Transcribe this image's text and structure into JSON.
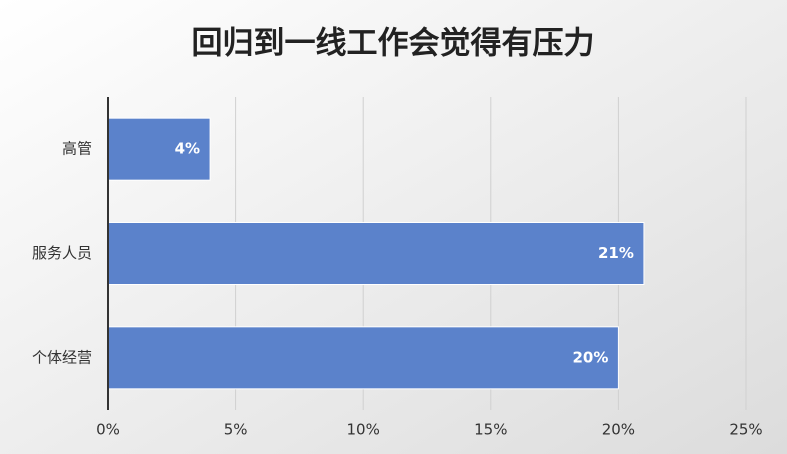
{
  "chart_data": {
    "type": "hbar",
    "title": "回归到一线工作会觉得有压力",
    "categories": [
      "高管",
      "服务人员",
      "个体经营"
    ],
    "values": [
      4,
      21,
      20
    ],
    "value_labels": [
      "4%",
      "21%",
      "20%"
    ],
    "color": "#5b82cb",
    "xlim": [
      0,
      25
    ],
    "xticks": [
      {
        "value": 0,
        "label": "0%"
      },
      {
        "value": 5,
        "label": "5%"
      },
      {
        "value": 10,
        "label": "10%"
      },
      {
        "value": 15,
        "label": "15%"
      },
      {
        "value": 20,
        "label": "20%"
      },
      {
        "value": 25,
        "label": "25%"
      }
    ],
    "grid": true
  }
}
